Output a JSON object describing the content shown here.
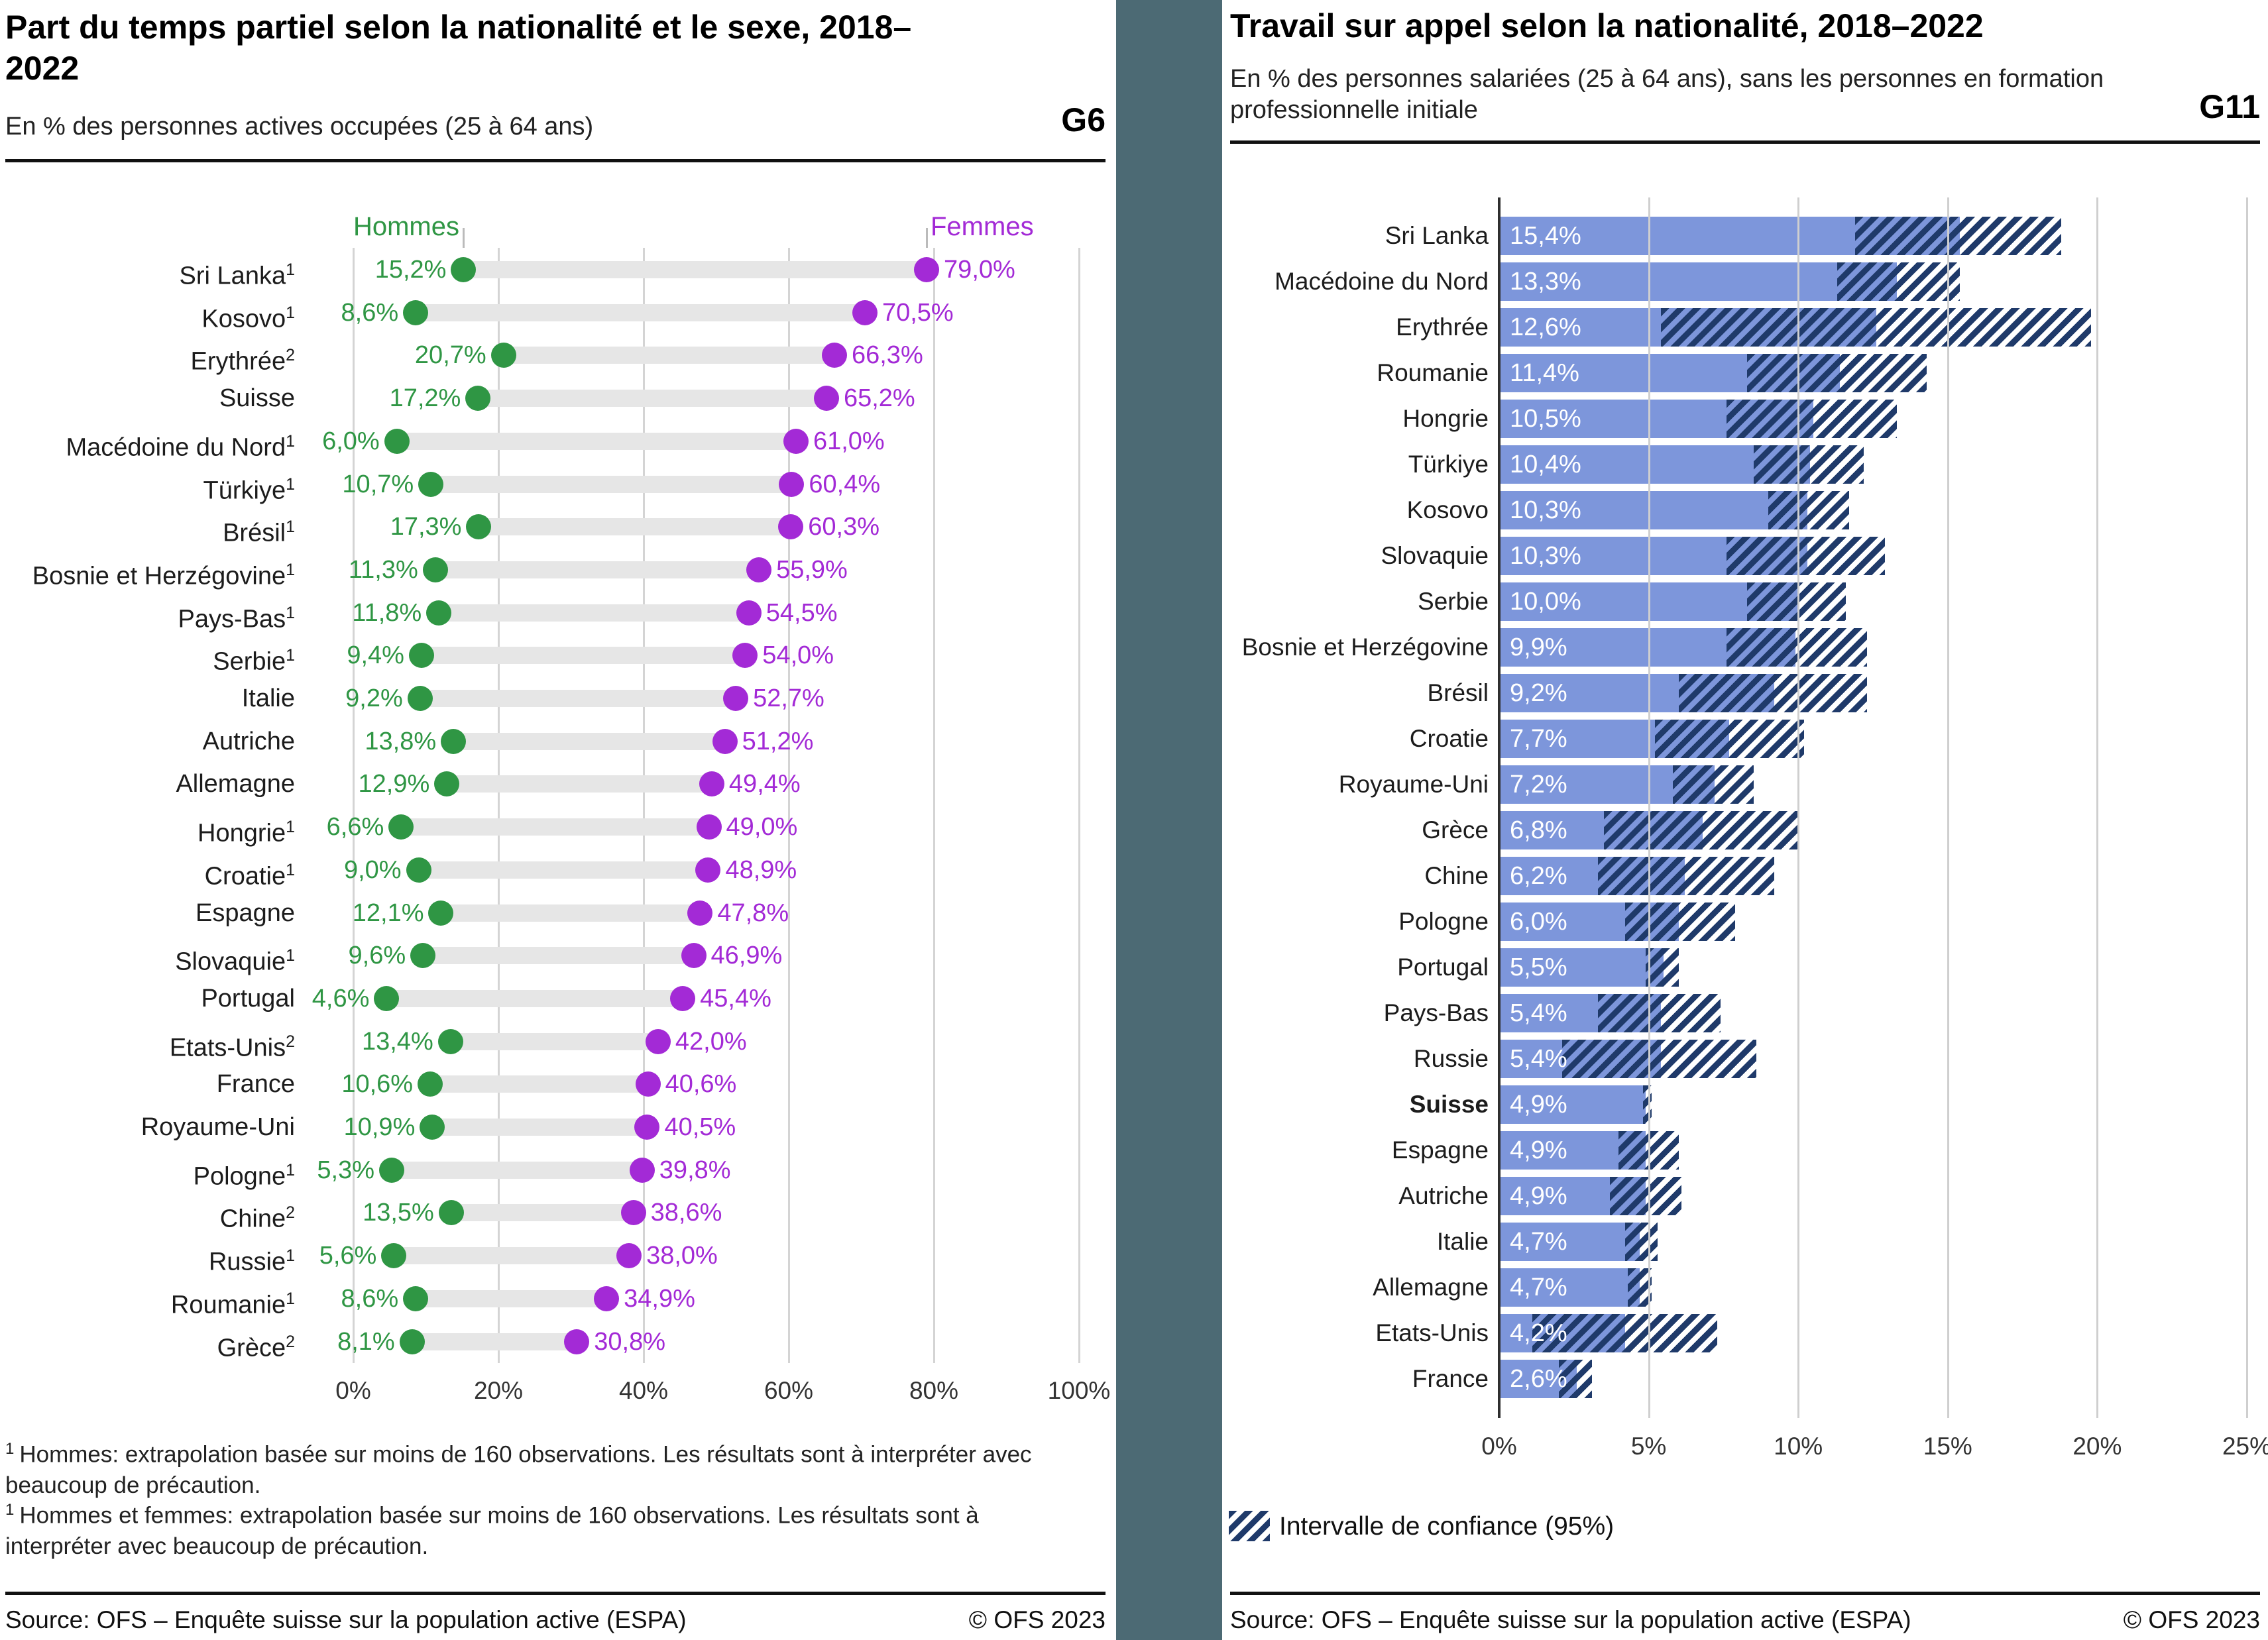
{
  "separator_color": "#4c6a74",
  "chart_data": [
    {
      "id": "G6",
      "type": "dumbbell",
      "title": "Part du temps partiel selon la nationalité et le sexe, 2018–2022",
      "subtitle": "En % des personnes actives occupées (25 à 64 ans)",
      "graph_label": "G6",
      "legend": {
        "men": "Hommes",
        "women": "Femmes"
      },
      "colors": {
        "men": "#2f9644",
        "women": "#a32ad6",
        "connector": "#e6e6e6"
      },
      "x_axis": {
        "min": 0,
        "max": 100,
        "ticks": [
          0,
          20,
          40,
          60,
          80,
          100
        ],
        "tick_labels": [
          "0%",
          "20%",
          "40%",
          "60%",
          "80%",
          "100%"
        ]
      },
      "rows": [
        {
          "label": "Sri Lanka",
          "note": "1",
          "men": 15.2,
          "men_label": "15,2%",
          "women": 79.0,
          "women_label": "79,0%"
        },
        {
          "label": "Kosovo",
          "note": "1",
          "men": 8.6,
          "men_label": "8,6%",
          "women": 70.5,
          "women_label": "70,5%"
        },
        {
          "label": "Erythrée",
          "note": "2",
          "men": 20.7,
          "men_label": "20,7%",
          "women": 66.3,
          "women_label": "66,3%"
        },
        {
          "label": "Suisse",
          "note": "",
          "men": 17.2,
          "men_label": "17,2%",
          "women": 65.2,
          "women_label": "65,2%"
        },
        {
          "label": "Macédoine du Nord",
          "note": "1",
          "men": 6.0,
          "men_label": "6,0%",
          "women": 61.0,
          "women_label": "61,0%"
        },
        {
          "label": "Türkiye",
          "note": "1",
          "men": 10.7,
          "men_label": "10,7%",
          "women": 60.4,
          "women_label": "60,4%"
        },
        {
          "label": "Brésil",
          "note": "1",
          "men": 17.3,
          "men_label": "17,3%",
          "women": 60.3,
          "women_label": "60,3%"
        },
        {
          "label": "Bosnie et Herzégovine",
          "note": "1",
          "men": 11.3,
          "men_label": "11,3%",
          "women": 55.9,
          "women_label": "55,9%"
        },
        {
          "label": "Pays-Bas",
          "note": "1",
          "men": 11.8,
          "men_label": "11,8%",
          "women": 54.5,
          "women_label": "54,5%"
        },
        {
          "label": "Serbie",
          "note": "1",
          "men": 9.4,
          "men_label": "9,4%",
          "women": 54.0,
          "women_label": "54,0%"
        },
        {
          "label": "Italie",
          "note": "",
          "men": 9.2,
          "men_label": "9,2%",
          "women": 52.7,
          "women_label": "52,7%"
        },
        {
          "label": "Autriche",
          "note": "",
          "men": 13.8,
          "men_label": "13,8%",
          "women": 51.2,
          "women_label": "51,2%"
        },
        {
          "label": "Allemagne",
          "note": "",
          "men": 12.9,
          "men_label": "12,9%",
          "women": 49.4,
          "women_label": "49,4%"
        },
        {
          "label": "Hongrie",
          "note": "1",
          "men": 6.6,
          "men_label": "6,6%",
          "women": 49.0,
          "women_label": "49,0%"
        },
        {
          "label": "Croatie",
          "note": "1",
          "men": 9.0,
          "men_label": "9,0%",
          "women": 48.9,
          "women_label": "48,9%"
        },
        {
          "label": "Espagne",
          "note": "",
          "men": 12.1,
          "men_label": "12,1%",
          "women": 47.8,
          "women_label": "47,8%"
        },
        {
          "label": "Slovaquie",
          "note": "1",
          "men": 9.6,
          "men_label": "9,6%",
          "women": 46.9,
          "women_label": "46,9%"
        },
        {
          "label": "Portugal",
          "note": "",
          "men": 4.6,
          "men_label": "4,6%",
          "women": 45.4,
          "women_label": "45,4%"
        },
        {
          "label": "Etats-Unis",
          "note": "2",
          "men": 13.4,
          "men_label": "13,4%",
          "women": 42.0,
          "women_label": "42,0%"
        },
        {
          "label": "France",
          "note": "",
          "men": 10.6,
          "men_label": "10,6%",
          "women": 40.6,
          "women_label": "40,6%"
        },
        {
          "label": "Royaume-Uni",
          "note": "",
          "men": 10.9,
          "men_label": "10,9%",
          "women": 40.5,
          "women_label": "40,5%"
        },
        {
          "label": "Pologne",
          "note": "1",
          "men": 5.3,
          "men_label": "5,3%",
          "women": 39.8,
          "women_label": "39,8%"
        },
        {
          "label": "Chine",
          "note": "2",
          "men": 13.5,
          "men_label": "13,5%",
          "women": 38.6,
          "women_label": "38,6%"
        },
        {
          "label": "Russie",
          "note": "1",
          "men": 5.6,
          "men_label": "5,6%",
          "women": 38.0,
          "women_label": "38,0%"
        },
        {
          "label": "Roumanie",
          "note": "1",
          "men": 8.6,
          "men_label": "8,6%",
          "women": 34.9,
          "women_label": "34,9%"
        },
        {
          "label": "Grèce",
          "note": "2",
          "men": 8.1,
          "men_label": "8,1%",
          "women": 30.8,
          "women_label": "30,8%"
        }
      ],
      "footnotes": [
        {
          "marker": "1",
          "text": "Hommes: extrapolation basée sur moins de 160 observations. Les résultats sont à interpréter avec beaucoup de précaution."
        },
        {
          "marker": "1",
          "text": "Hommes et femmes: extrapolation basée sur moins de 160 observations. Les résultats sont à interpréter avec beaucoup de précaution."
        }
      ],
      "source": "Source: OFS – Enquête suisse sur la population active (ESPA)",
      "copyright": "© OFS 2023"
    },
    {
      "id": "G11",
      "type": "bar",
      "title": "Travail sur appel selon la nationalité, 2018–2022",
      "subtitle": "En % des personnes salariées (25 à 64 ans), sans les personnes en formation professionnelle initiale",
      "graph_label": "G11",
      "colors": {
        "bar": "#7d96db",
        "ci_hatch": "#1f3a6a"
      },
      "ci_legend": "Intervalle de confiance (95%)",
      "x_axis": {
        "min": 0,
        "max": 25,
        "ticks": [
          0,
          5,
          10,
          15,
          20,
          25
        ],
        "tick_labels": [
          "0%",
          "5%",
          "10%",
          "15%",
          "20%",
          "25%"
        ]
      },
      "rows": [
        {
          "label": "Sri Lanka",
          "bold": false,
          "value": 15.4,
          "value_label": "15,4%",
          "ci_low": 11.9,
          "ci_high": 18.8
        },
        {
          "label": "Macédoine du Nord",
          "bold": false,
          "value": 13.3,
          "value_label": "13,3%",
          "ci_low": 11.3,
          "ci_high": 15.4
        },
        {
          "label": "Erythrée",
          "bold": false,
          "value": 12.6,
          "value_label": "12,6%",
          "ci_low": 5.4,
          "ci_high": 19.8
        },
        {
          "label": "Roumanie",
          "bold": false,
          "value": 11.4,
          "value_label": "11,4%",
          "ci_low": 8.3,
          "ci_high": 14.3
        },
        {
          "label": "Hongrie",
          "bold": false,
          "value": 10.5,
          "value_label": "10,5%",
          "ci_low": 7.6,
          "ci_high": 13.3
        },
        {
          "label": "Türkiye",
          "bold": false,
          "value": 10.4,
          "value_label": "10,4%",
          "ci_low": 8.5,
          "ci_high": 12.2
        },
        {
          "label": "Kosovo",
          "bold": false,
          "value": 10.3,
          "value_label": "10,3%",
          "ci_low": 9.0,
          "ci_high": 11.7
        },
        {
          "label": "Slovaquie",
          "bold": false,
          "value": 10.3,
          "value_label": "10,3%",
          "ci_low": 7.6,
          "ci_high": 12.9
        },
        {
          "label": "Serbie",
          "bold": false,
          "value": 10.0,
          "value_label": "10,0%",
          "ci_low": 8.3,
          "ci_high": 11.6
        },
        {
          "label": "Bosnie et Herzégovine",
          "bold": false,
          "value": 9.9,
          "value_label": "9,9%",
          "ci_low": 7.6,
          "ci_high": 12.3
        },
        {
          "label": "Brésil",
          "bold": false,
          "value": 9.2,
          "value_label": "9,2%",
          "ci_low": 6.0,
          "ci_high": 12.3
        },
        {
          "label": "Croatie",
          "bold": false,
          "value": 7.7,
          "value_label": "7,7%",
          "ci_low": 5.2,
          "ci_high": 10.2
        },
        {
          "label": "Royaume-Uni",
          "bold": false,
          "value": 7.2,
          "value_label": "7,2%",
          "ci_low": 5.8,
          "ci_high": 8.5
        },
        {
          "label": "Grèce",
          "bold": false,
          "value": 6.8,
          "value_label": "6,8%",
          "ci_low": 3.5,
          "ci_high": 10.0
        },
        {
          "label": "Chine",
          "bold": false,
          "value": 6.2,
          "value_label": "6,2%",
          "ci_low": 3.3,
          "ci_high": 9.2
        },
        {
          "label": "Pologne",
          "bold": false,
          "value": 6.0,
          "value_label": "6,0%",
          "ci_low": 4.2,
          "ci_high": 7.9
        },
        {
          "label": "Portugal",
          "bold": false,
          "value": 5.5,
          "value_label": "5,5%",
          "ci_low": 4.9,
          "ci_high": 6.0
        },
        {
          "label": "Pays-Bas",
          "bold": false,
          "value": 5.4,
          "value_label": "5,4%",
          "ci_low": 3.3,
          "ci_high": 7.4
        },
        {
          "label": "Russie",
          "bold": false,
          "value": 5.4,
          "value_label": "5,4%",
          "ci_low": 2.1,
          "ci_high": 8.6
        },
        {
          "label": "Suisse",
          "bold": true,
          "value": 4.9,
          "value_label": "4,9%",
          "ci_low": 4.8,
          "ci_high": 5.1
        },
        {
          "label": "Espagne",
          "bold": false,
          "value": 4.9,
          "value_label": "4,9%",
          "ci_low": 4.0,
          "ci_high": 6.0
        },
        {
          "label": "Autriche",
          "bold": false,
          "value": 4.9,
          "value_label": "4,9%",
          "ci_low": 3.7,
          "ci_high": 6.1
        },
        {
          "label": "Italie",
          "bold": false,
          "value": 4.7,
          "value_label": "4,7%",
          "ci_low": 4.2,
          "ci_high": 5.3
        },
        {
          "label": "Allemagne",
          "bold": false,
          "value": 4.7,
          "value_label": "4,7%",
          "ci_low": 4.3,
          "ci_high": 5.1
        },
        {
          "label": "Etats-Unis",
          "bold": false,
          "value": 4.2,
          "value_label": "4,2%",
          "ci_low": 1.1,
          "ci_high": 7.3
        },
        {
          "label": "France",
          "bold": false,
          "value": 2.6,
          "value_label": "2,6%",
          "ci_low": 2.0,
          "ci_high": 3.1
        }
      ],
      "source": "Source: OFS – Enquête suisse sur la population active (ESPA)",
      "copyright": "© OFS 2023"
    }
  ]
}
